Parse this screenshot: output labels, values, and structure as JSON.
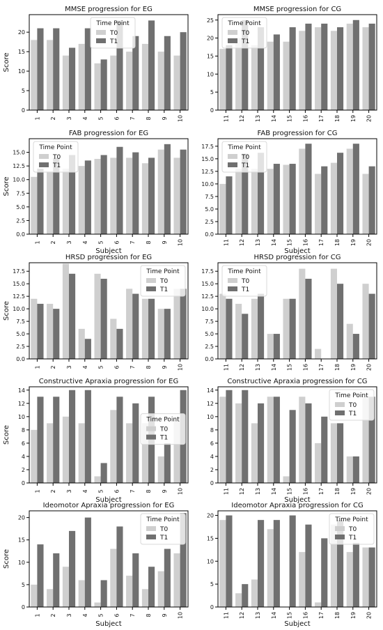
{
  "colors": {
    "T0": "#cfcfcf",
    "T1": "#707070",
    "axis": "#000000"
  },
  "chart_data": [
    {
      "type": "bar",
      "title": "MMSE progression for EG",
      "xlabel": "",
      "ylabel": "Score",
      "categories": [
        "1",
        "2",
        "3",
        "4",
        "5",
        "6",
        "7",
        "8",
        "9",
        "10"
      ],
      "ylim": [
        0,
        24.5
      ],
      "yticks": [
        0,
        5,
        10,
        15,
        20
      ],
      "legend": {
        "title": "Time Point",
        "placement": "top-center"
      },
      "series": [
        {
          "name": "T0",
          "values": [
            18,
            18,
            14,
            17,
            12,
            14,
            15,
            17,
            15,
            14
          ]
        },
        {
          "name": "T1",
          "values": [
            21,
            21,
            16,
            21,
            13,
            23,
            19,
            23,
            19,
            20
          ]
        }
      ]
    },
    {
      "type": "bar",
      "title": "MMSE progression for CG",
      "xlabel": "",
      "ylabel": "",
      "categories": [
        "11",
        "12",
        "13",
        "14",
        "15",
        "16",
        "17",
        "18",
        "19",
        "20"
      ],
      "ylim": [
        0,
        26.5
      ],
      "yticks": [
        0,
        5,
        10,
        15,
        20,
        25
      ],
      "legend": {
        "title": "Time Point",
        "placement": "top-left"
      },
      "series": [
        {
          "name": "T0",
          "values": [
            17,
            20,
            18,
            19,
            19,
            22,
            23,
            22,
            24,
            23
          ]
        },
        {
          "name": "T1",
          "values": [
            18,
            25,
            23,
            21,
            23,
            24,
            24,
            23,
            25,
            24
          ]
        }
      ]
    },
    {
      "type": "bar",
      "title": "FAB progression for EG",
      "xlabel": "Subject",
      "ylabel": "Score",
      "categories": [
        "1",
        "2",
        "3",
        "4",
        "5",
        "6",
        "7",
        "8",
        "9",
        "10"
      ],
      "ylim": [
        0,
        17.5
      ],
      "yticks": [
        0,
        2.5,
        5,
        7.5,
        10,
        12.5,
        15
      ],
      "ytickLabels": [
        "0.0",
        "2.5",
        "5.0",
        "7.5",
        "10.0",
        "12.5",
        "15.0"
      ],
      "legend": {
        "title": "Time Point",
        "placement": "top-left"
      },
      "series": [
        {
          "name": "T0",
          "values": [
            10.5,
            11.5,
            12,
            12.5,
            13.8,
            14,
            14,
            13,
            15.5,
            14
          ]
        },
        {
          "name": "T1",
          "values": [
            12,
            14,
            14.5,
            13.5,
            14.5,
            16,
            15,
            14,
            16.5,
            15.5
          ]
        }
      ]
    },
    {
      "type": "bar",
      "title": "FAB progression for CG",
      "xlabel": "Subject",
      "ylabel": "",
      "categories": [
        "11",
        "12",
        "13",
        "14",
        "15",
        "16",
        "17",
        "18",
        "19",
        "20"
      ],
      "ylim": [
        0,
        19
      ],
      "yticks": [
        0,
        2.5,
        5,
        7.5,
        10,
        12.5,
        15,
        17.5
      ],
      "ytickLabels": [
        "0.0",
        "2.5",
        "5.0",
        "7.5",
        "10.0",
        "12.5",
        "15.0",
        "17.5"
      ],
      "legend": {
        "title": "Time Point",
        "placement": "top-left"
      },
      "series": [
        {
          "name": "T0",
          "values": [
            10,
            13,
            13,
            13,
            13.8,
            17,
            12,
            14.2,
            17,
            12
          ]
        },
        {
          "name": "T1",
          "values": [
            11.5,
            16,
            16.2,
            14,
            14,
            18,
            13.5,
            16.2,
            18,
            13.5
          ]
        }
      ]
    },
    {
      "type": "bar",
      "title": "HRSD progression for EG",
      "xlabel": "",
      "ylabel": "Score",
      "categories": [
        "1",
        "2",
        "3",
        "4",
        "5",
        "6",
        "7",
        "8",
        "9",
        "10"
      ],
      "ylim": [
        0,
        19.2
      ],
      "yticks": [
        0,
        2.5,
        5,
        7.5,
        10,
        12.5,
        15,
        17.5
      ],
      "ytickLabels": [
        "0.0",
        "2.5",
        "5.0",
        "7.5",
        "10.0",
        "12.5",
        "15.0",
        "17.5"
      ],
      "legend": {
        "title": "Time Point",
        "placement": "top-right"
      },
      "series": [
        {
          "name": "T0",
          "values": [
            12,
            11,
            19,
            6,
            17,
            8,
            14,
            12,
            10,
            14
          ]
        },
        {
          "name": "T1",
          "values": [
            11,
            10,
            17,
            4,
            16,
            6,
            13,
            12,
            10,
            14
          ]
        }
      ]
    },
    {
      "type": "bar",
      "title": "HRSD progression for CG",
      "xlabel": "",
      "ylabel": "",
      "categories": [
        "11",
        "12",
        "13",
        "14",
        "15",
        "16",
        "17",
        "18",
        "19",
        "20"
      ],
      "ylim": [
        0,
        19.2
      ],
      "yticks": [
        0,
        2.5,
        5,
        7.5,
        10,
        12.5,
        15,
        17.5
      ],
      "ytickLabels": [
        "0.0",
        "2.5",
        "5.0",
        "7.5",
        "10.0",
        "12.5",
        "15.0",
        "17.5"
      ],
      "legend": {
        "title": "Time Point",
        "placement": "top-left"
      },
      "series": [
        {
          "name": "T0",
          "values": [
            13,
            11,
            12,
            5,
            12,
            18,
            2,
            18,
            7,
            15
          ]
        },
        {
          "name": "T1",
          "values": [
            12,
            9,
            13,
            5,
            12,
            16,
            0,
            15,
            5,
            13
          ]
        }
      ]
    },
    {
      "type": "bar",
      "title": "Constructive Apraxia progression for EG",
      "xlabel": "Subject",
      "ylabel": "Score",
      "categories": [
        "1",
        "2",
        "3",
        "4",
        "5",
        "6",
        "7",
        "8",
        "9",
        "10"
      ],
      "ylim": [
        0,
        14.5
      ],
      "yticks": [
        0,
        2,
        4,
        6,
        8,
        10,
        12,
        14
      ],
      "legend": {
        "title": "Time Point",
        "placement": "right"
      },
      "series": [
        {
          "name": "T0",
          "values": [
            8,
            9,
            10,
            9,
            1,
            11,
            9,
            9,
            4,
            10
          ]
        },
        {
          "name": "T1",
          "values": [
            13,
            13,
            14,
            14,
            3,
            13,
            12,
            13,
            6,
            14
          ]
        }
      ]
    },
    {
      "type": "bar",
      "title": "Constructive Apraxia progression for CG",
      "xlabel": "Subject",
      "ylabel": "",
      "categories": [
        "11",
        "12",
        "13",
        "14",
        "15",
        "16",
        "17",
        "18",
        "19",
        "20"
      ],
      "ylim": [
        0,
        14.5
      ],
      "yticks": [
        0,
        2,
        4,
        6,
        8,
        10,
        12,
        14
      ],
      "legend": {
        "title": "Time Point",
        "placement": "top-right"
      },
      "series": [
        {
          "name": "T0",
          "values": [
            13,
            12,
            9,
            13,
            1,
            13,
            6,
            9,
            4,
            13
          ]
        },
        {
          "name": "T1",
          "values": [
            14,
            14,
            12,
            13,
            11,
            12,
            10,
            9,
            4,
            13
          ]
        }
      ]
    },
    {
      "type": "bar",
      "title": "Ideomotor Apraxia progression for EG",
      "xlabel": "Subject",
      "ylabel": "Score",
      "categories": [
        "1",
        "2",
        "3",
        "4",
        "5",
        "6",
        "7",
        "8",
        "9",
        "10"
      ],
      "ylim": [
        0,
        21.5
      ],
      "yticks": [
        0,
        5,
        10,
        15,
        20
      ],
      "legend": {
        "title": "Time Point",
        "placement": "top-right"
      },
      "series": [
        {
          "name": "T0",
          "values": [
            5,
            4,
            9,
            6,
            1,
            13,
            7,
            4,
            8,
            12
          ]
        },
        {
          "name": "T1",
          "values": [
            14,
            12,
            17,
            20,
            6,
            18,
            12,
            9,
            13,
            21
          ]
        }
      ]
    },
    {
      "type": "bar",
      "title": "Ideomotor Apraxia progression for CG",
      "xlabel": "Subject",
      "ylabel": "",
      "categories": [
        "11",
        "12",
        "13",
        "14",
        "15",
        "16",
        "17",
        "18",
        "19",
        "20"
      ],
      "ylim": [
        0,
        21
      ],
      "yticks": [
        0,
        5,
        10,
        15,
        20
      ],
      "legend": {
        "title": "Time Point",
        "placement": "top-right"
      },
      "series": [
        {
          "name": "T0",
          "values": [
            19,
            3,
            6,
            17,
            0,
            12,
            1,
            18,
            12,
            13
          ]
        },
        {
          "name": "T1",
          "values": [
            20,
            5,
            19,
            19,
            20,
            18,
            15,
            19,
            14,
            13
          ]
        }
      ]
    }
  ]
}
